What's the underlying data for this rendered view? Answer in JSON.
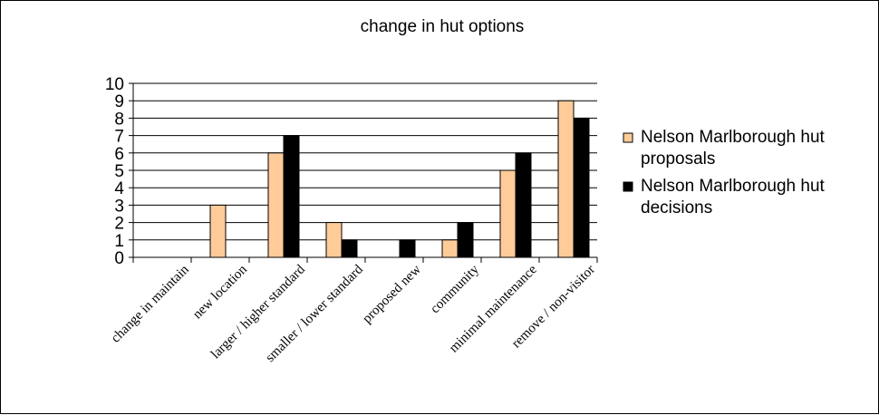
{
  "chart_data": {
    "type": "bar",
    "title": "change in hut options",
    "categories": [
      "change in maintain",
      "new location",
      "larger / higher standard",
      "smaller / lower standard",
      "proposed new",
      "community",
      "minimal maintenance",
      "remove / non-visitor"
    ],
    "series": [
      {
        "name": "Nelson Marlborough hut proposals",
        "legend_lines": [
          "Nelson Marlborough hut",
          "proposals"
        ],
        "color": "#FFCC99",
        "values": [
          0,
          3,
          6,
          2,
          0,
          1,
          5,
          9
        ]
      },
      {
        "name": "Nelson Marlborough hut decisions",
        "legend_lines": [
          "Nelson Marlborough hut",
          "decisions"
        ],
        "color": "#000000",
        "values": [
          0,
          0,
          7,
          1,
          1,
          2,
          6,
          8
        ]
      }
    ],
    "ylim": [
      0,
      10
    ],
    "yticks": [
      "0",
      "1",
      "2",
      "3",
      "4",
      "5",
      "6",
      "7",
      "8",
      "9",
      "10"
    ],
    "grid": true,
    "legend_position": "right"
  }
}
